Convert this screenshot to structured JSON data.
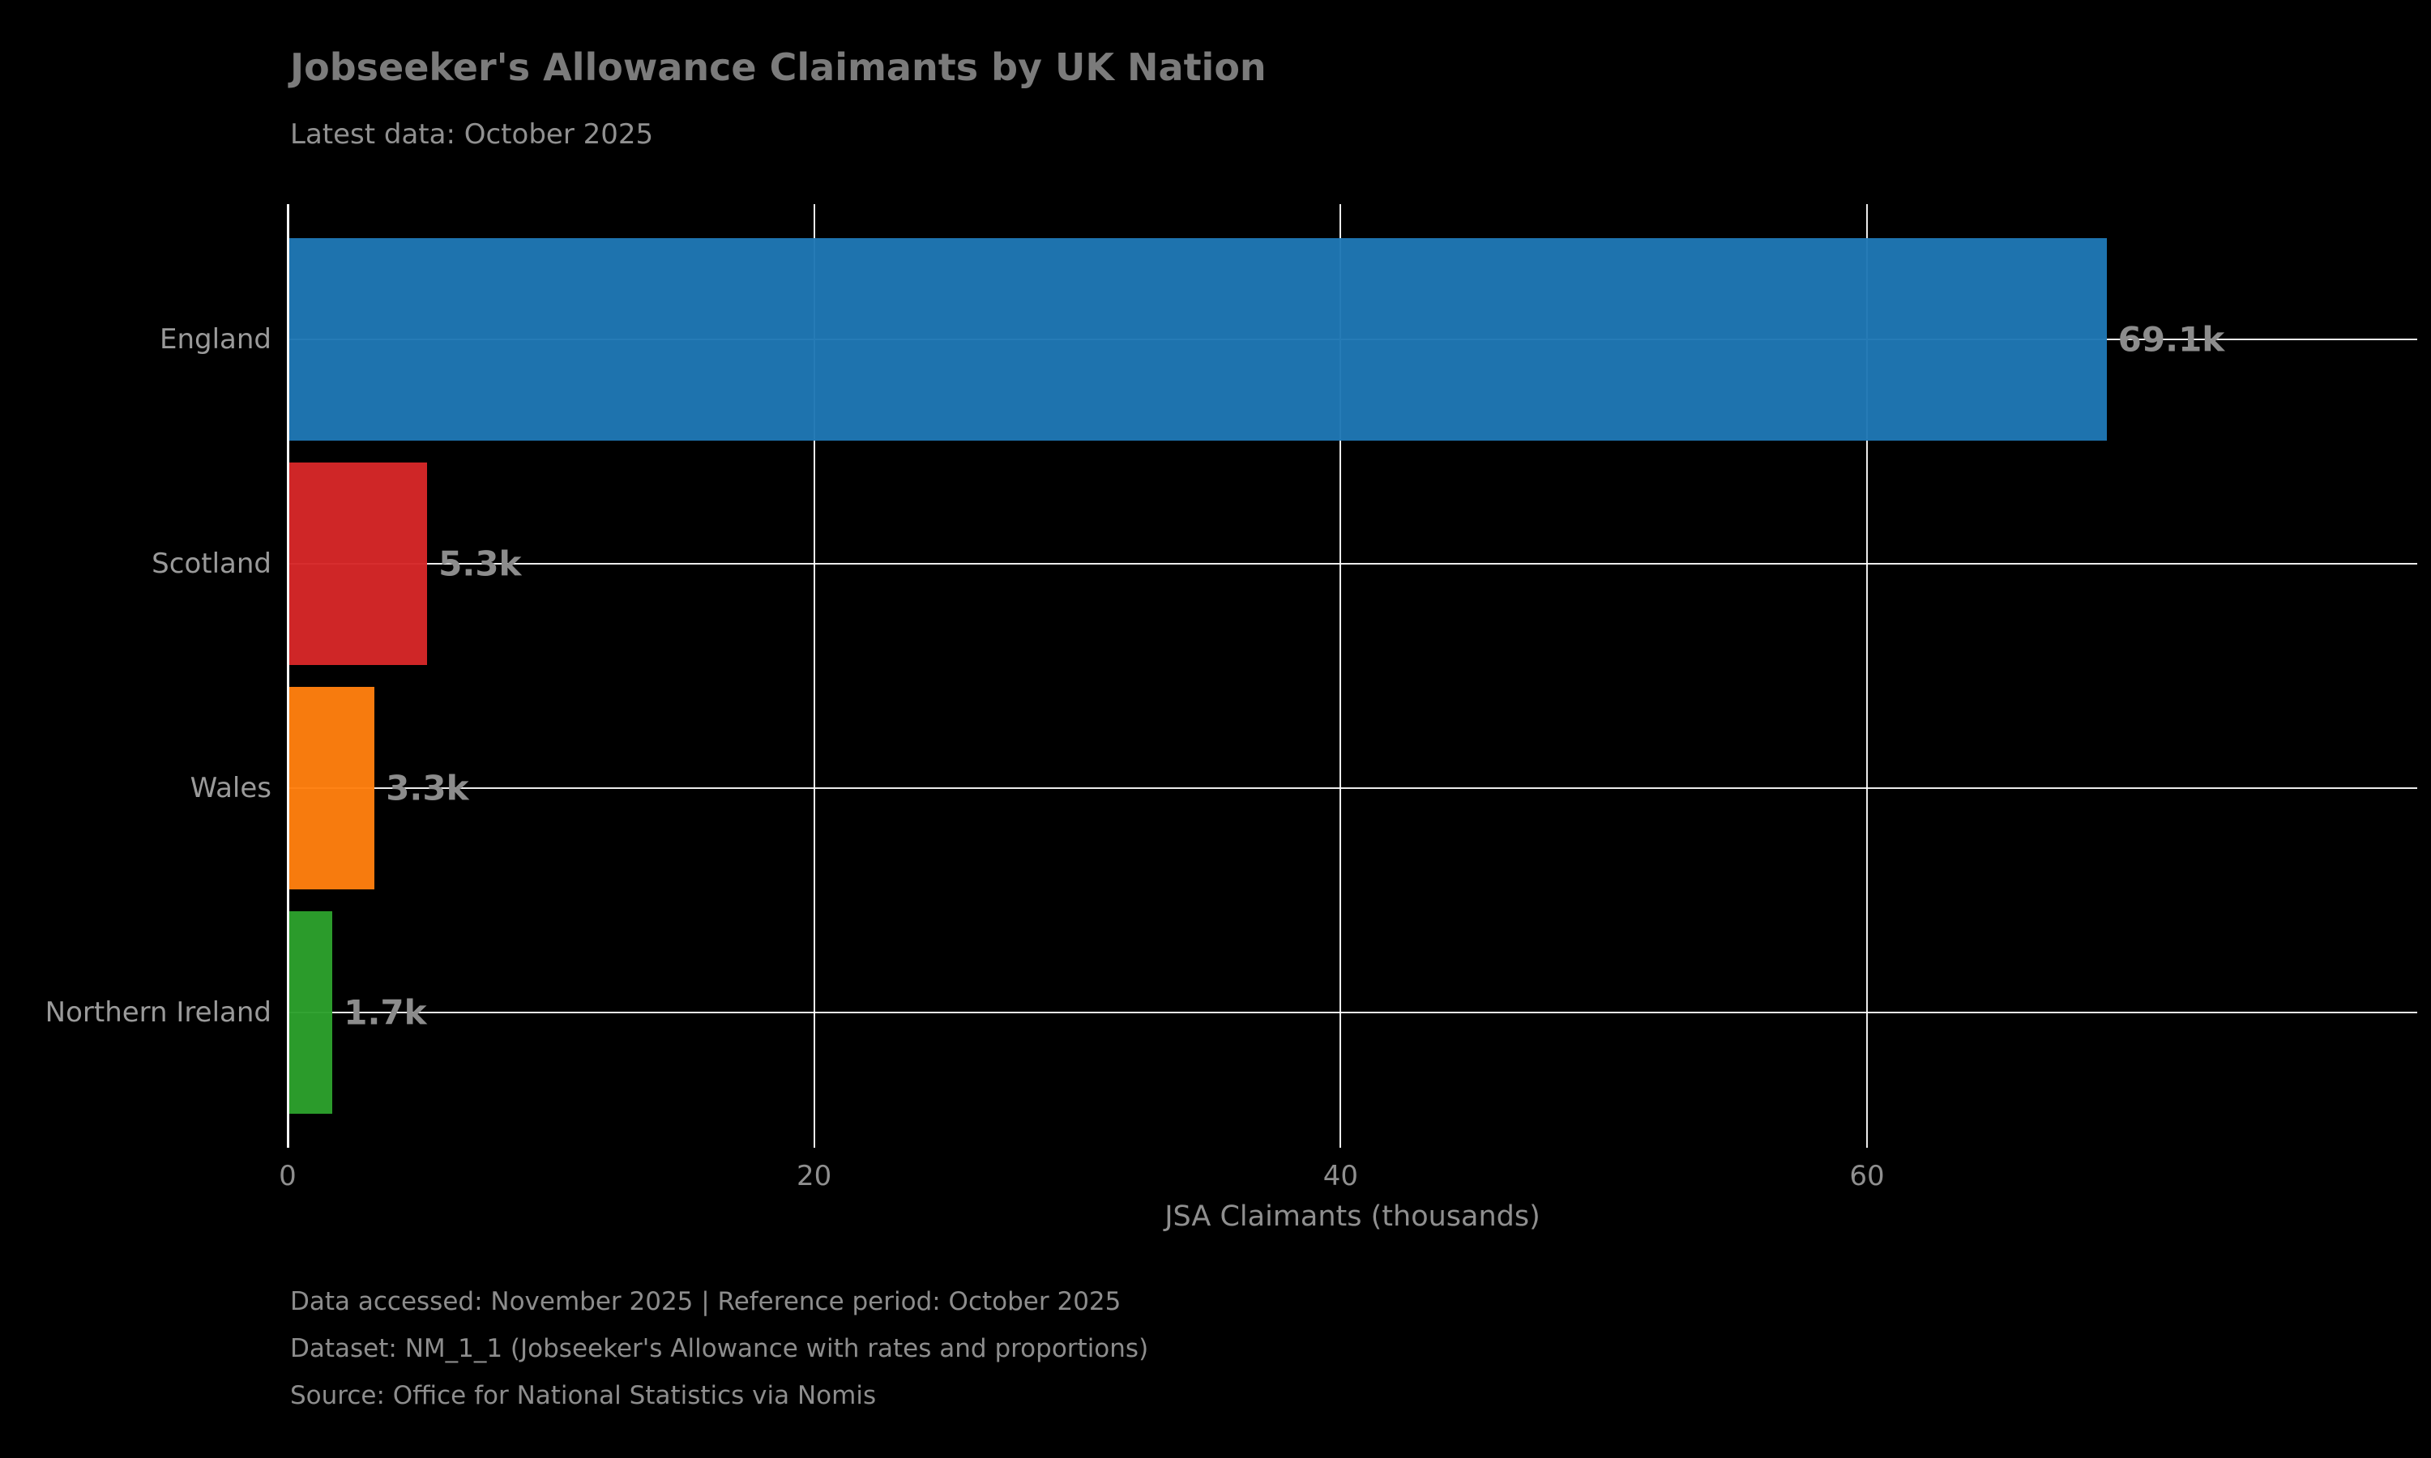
{
  "header": {
    "title": "Jobseeker's Allowance Claimants by UK Nation",
    "subtitle": "Latest data: October 2025"
  },
  "chart_data": {
    "type": "bar",
    "orientation": "horizontal",
    "title": "Jobseeker's Allowance Claimants by UK Nation",
    "subtitle": "Latest data: October 2025",
    "categories": [
      "England",
      "Scotland",
      "Wales",
      "Northern Ireland"
    ],
    "values": [
      69.1,
      5.3,
      3.3,
      1.7
    ],
    "value_labels": [
      "69.1k",
      "5.3k",
      "3.3k",
      "1.7k"
    ],
    "bar_colors": [
      "#1f77b4",
      "#d62728",
      "#ff7f0e",
      "#2ca02c"
    ],
    "xlabel": "JSA Claimants (thousands)",
    "ylabel": "",
    "xticks": [
      0,
      20,
      40,
      60
    ],
    "xtick_labels": [
      "0",
      "20",
      "40",
      "60"
    ],
    "xlim": [
      0,
      80.9
    ],
    "grid": true,
    "legend": "none",
    "background_color": "#000000",
    "grid_color": "#ffffff",
    "text_color": "#8f8f8f"
  },
  "footer": {
    "lines": [
      "Data accessed: November 2025 | Reference period: October 2025",
      "Dataset: NM_1_1 (Jobseeker's Allowance with rates and proportions)",
      "Source: Office for National Statistics via Nomis"
    ]
  }
}
